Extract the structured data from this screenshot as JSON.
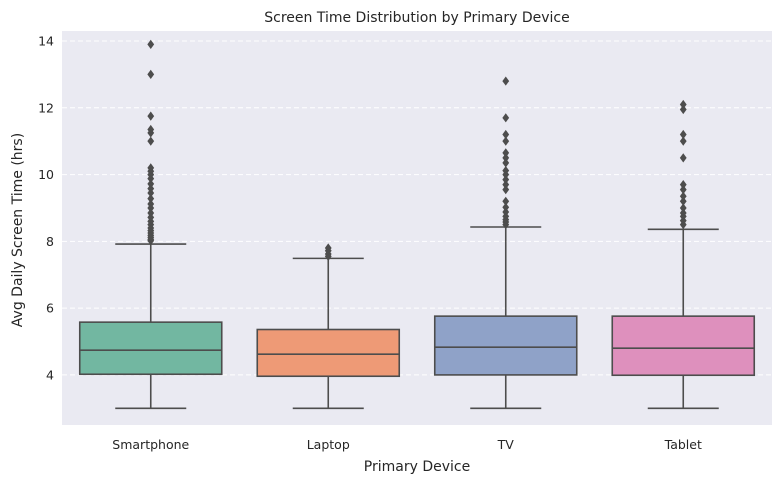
{
  "chart_data": {
    "type": "box",
    "title": "Screen Time Distribution by Primary Device",
    "xlabel": "Primary Device",
    "ylabel": "Avg Daily Screen Time (hrs)",
    "ylim": [
      2.5,
      14.3
    ],
    "yticks": [
      4,
      6,
      8,
      10,
      12,
      14
    ],
    "grid": true,
    "colors": {
      "background": "#EAEAF2",
      "grid": "#FFFFFF",
      "box_edge": "#4D4D4D"
    },
    "categories": [
      "Smartphone",
      "Laptop",
      "TV",
      "Tablet"
    ],
    "series": [
      {
        "category": "Smartphone",
        "color": "#72B7A1",
        "whisker_low": 3.0,
        "q1": 4.02,
        "median": 4.74,
        "q3": 5.58,
        "whisker_high": 7.92,
        "outliers": [
          8.02,
          8.06,
          8.12,
          8.18,
          8.25,
          8.32,
          8.4,
          8.5,
          8.6,
          8.72,
          8.85,
          9.0,
          9.12,
          9.28,
          9.45,
          9.58,
          9.72,
          9.88,
          10.0,
          10.1,
          10.2,
          11.0,
          11.25,
          11.35,
          11.75,
          13.0,
          13.9
        ]
      },
      {
        "category": "Laptop",
        "color": "#EE9A76",
        "whisker_low": 3.0,
        "q1": 3.96,
        "median": 4.62,
        "q3": 5.36,
        "whisker_high": 7.49,
        "outliers": [
          7.55,
          7.62,
          7.72,
          7.8
        ]
      },
      {
        "category": "TV",
        "color": "#8FA2C8",
        "whisker_low": 3.0,
        "q1": 4.0,
        "median": 4.83,
        "q3": 5.76,
        "whisker_high": 8.43,
        "outliers": [
          8.5,
          8.58,
          8.65,
          8.75,
          8.88,
          9.02,
          9.2,
          9.55,
          9.7,
          9.85,
          10.0,
          10.12,
          10.35,
          10.5,
          10.65,
          11.0,
          11.2,
          11.7,
          12.8
        ]
      },
      {
        "category": "Tablet",
        "color": "#DE90BD",
        "whisker_low": 3.0,
        "q1": 3.99,
        "median": 4.8,
        "q3": 5.76,
        "whisker_high": 8.36,
        "outliers": [
          8.5,
          8.62,
          8.75,
          8.85,
          9.0,
          9.2,
          9.35,
          9.55,
          9.7,
          10.5,
          11.0,
          11.2,
          11.95,
          12.1
        ]
      }
    ]
  }
}
